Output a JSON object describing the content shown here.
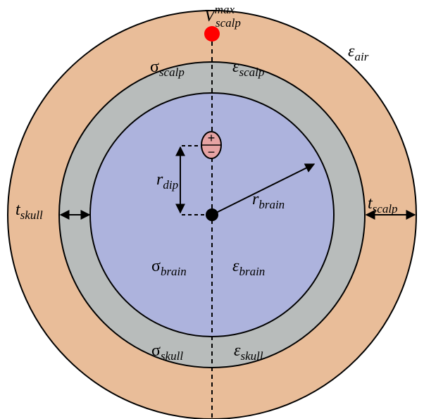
{
  "labels": [
    {
      "base": "V",
      "sup": "max",
      "sub": "scalp"
    },
    {
      "base": "ε",
      "sub": "air"
    },
    {
      "base": "σ",
      "sub": "scalp"
    },
    {
      "base": "ε",
      "sub": "scalp"
    },
    {
      "base": "r",
      "sub": "dip"
    },
    {
      "base": "r",
      "sub": "brain"
    },
    {
      "base": "t",
      "sub": "skull"
    },
    {
      "base": "t",
      "sub": "scalp"
    },
    {
      "base": "σ",
      "sub": "brain"
    },
    {
      "base": "ε",
      "sub": "brain"
    },
    {
      "base": "σ",
      "sub": "skull"
    },
    {
      "base": "ε",
      "sub": "skull"
    }
  ],
  "dipole": {
    "plus": "+",
    "minus": "−"
  }
}
